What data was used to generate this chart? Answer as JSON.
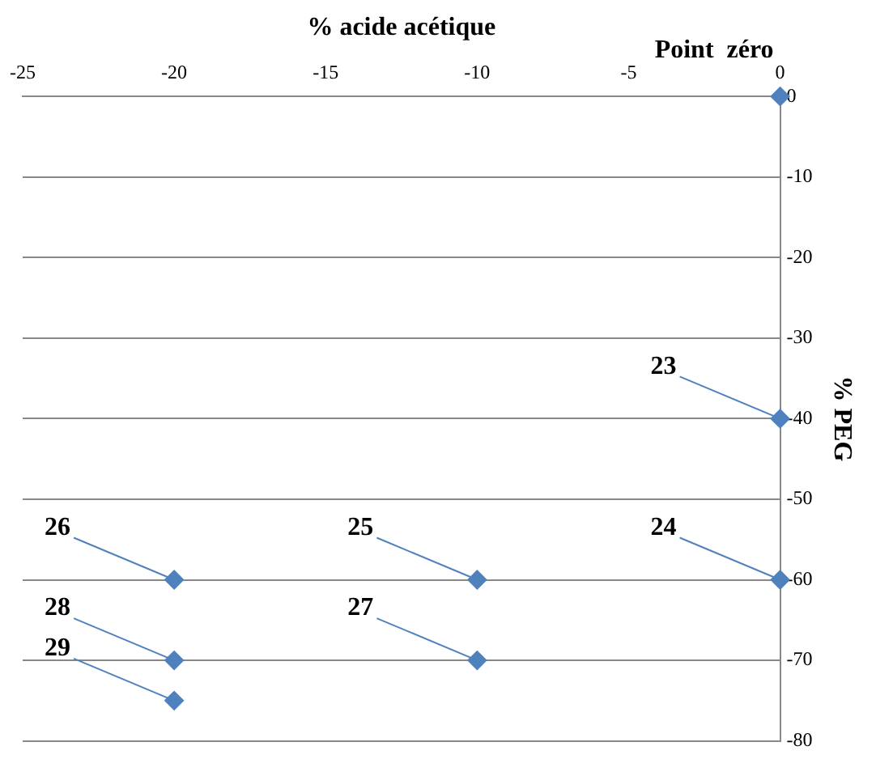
{
  "chart_data": {
    "type": "scatter",
    "xlabel": "% acide acétique",
    "ylabel": "% PEG",
    "x": [
      0,
      0,
      0,
      -10,
      -20,
      -20,
      -10,
      -20
    ],
    "series": [
      {
        "color": "#4f81bd",
        "values": [
          0,
          -40,
          -60,
          -60,
          -60,
          -70,
          -70,
          -75
        ]
      }
    ],
    "xlim": [
      -25,
      0
    ],
    "xticks": [
      -25,
      -20,
      -15,
      -10,
      -5,
      0
    ],
    "ylim": [
      -80,
      0
    ],
    "yticks": [
      0,
      -10,
      -20,
      -30,
      -40,
      -50,
      -60,
      -70,
      -80
    ],
    "grid": "y",
    "marker": "diamond",
    "legend": false,
    "annotations": [
      {
        "text": "Point  zéro",
        "x": 0,
        "y": 0
      },
      {
        "text": "23",
        "x": 0,
        "y": -40
      },
      {
        "text": "24",
        "x": 0,
        "y": -60
      },
      {
        "text": "25",
        "x": -10,
        "y": -60
      },
      {
        "text": "26",
        "x": -20,
        "y": -60
      },
      {
        "text": "27",
        "x": -10,
        "y": -70
      },
      {
        "text": "28",
        "x": -20,
        "y": -70
      },
      {
        "text": "29",
        "x": -20,
        "y": -75
      }
    ]
  }
}
